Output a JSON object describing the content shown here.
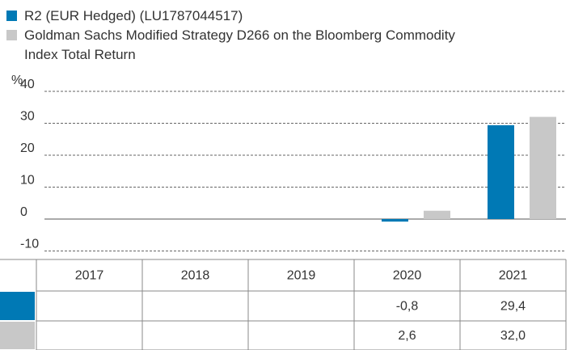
{
  "chart_data": {
    "type": "bar",
    "y_label": "%",
    "categories": [
      "2017",
      "2018",
      "2019",
      "2020",
      "2021"
    ],
    "series": [
      {
        "name": "R2 (EUR Hedged) (LU1787044517)",
        "color": "#0079b5",
        "values": [
          null,
          null,
          null,
          -0.8,
          29.4
        ],
        "value_labels": [
          null,
          null,
          null,
          "-0,8",
          "29,4"
        ]
      },
      {
        "name": "Goldman Sachs Modified Strategy D266 on the Bloomberg Commodity Index Total Return",
        "color": "#c8c8c8",
        "values": [
          null,
          null,
          null,
          2.6,
          32.0
        ],
        "value_labels": [
          null,
          null,
          null,
          "2,6",
          "32,0"
        ]
      }
    ],
    "ylim": [
      -10,
      40
    ],
    "yticks": [
      40,
      30,
      20,
      10,
      0,
      -10
    ],
    "grid": true
  }
}
